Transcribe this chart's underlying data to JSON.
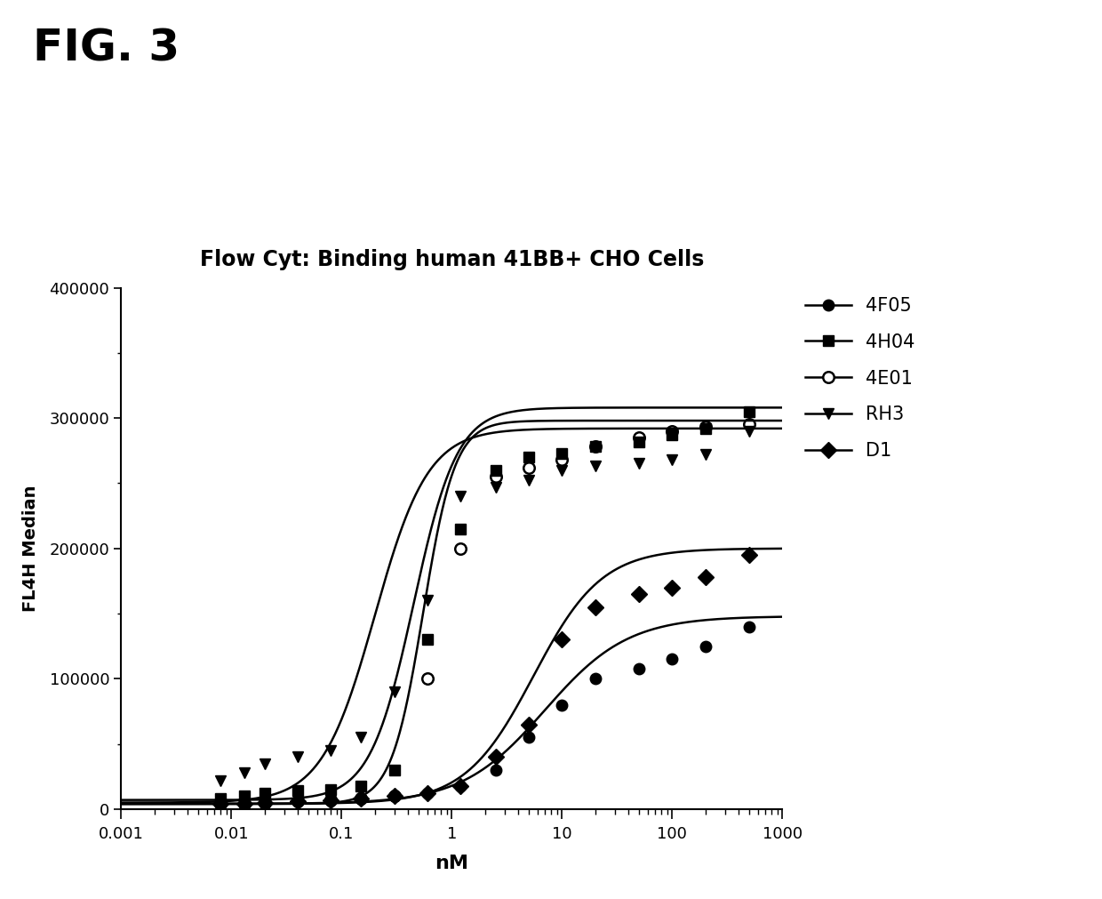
{
  "title": "Flow Cyt: Binding human 41BB+ CHO Cells",
  "fig_label": "FIG. 3",
  "xlabel": "nM",
  "ylabel": "FL4H Median",
  "xlim_log": [
    -3,
    3
  ],
  "ylim": [
    0,
    400000
  ],
  "yticks": [
    0,
    100000,
    200000,
    300000,
    400000
  ],
  "series": [
    {
      "label": "4F05",
      "marker": "o",
      "fillstyle": "full",
      "color": "#000000",
      "x": [
        0.008,
        0.013,
        0.02,
        0.04,
        0.08,
        0.15,
        0.3,
        0.6,
        1.2,
        2.5,
        5,
        10,
        20,
        50,
        100,
        200,
        500
      ],
      "y": [
        5000,
        5000,
        6000,
        7000,
        8000,
        9000,
        10000,
        12000,
        18000,
        30000,
        55000,
        80000,
        100000,
        108000,
        115000,
        125000,
        140000
      ],
      "ec50": 7.0,
      "bottom": 4000,
      "top": 148000,
      "hill": 1.15
    },
    {
      "label": "4H04",
      "marker": "s",
      "fillstyle": "full",
      "color": "#000000",
      "x": [
        0.008,
        0.013,
        0.02,
        0.04,
        0.08,
        0.15,
        0.3,
        0.6,
        1.2,
        2.5,
        5,
        10,
        20,
        50,
        100,
        200,
        500
      ],
      "y": [
        8000,
        10000,
        12000,
        14000,
        15000,
        18000,
        30000,
        130000,
        215000,
        260000,
        270000,
        273000,
        278000,
        282000,
        287000,
        292000,
        305000
      ],
      "ec50": 0.45,
      "bottom": 7000,
      "top": 308000,
      "hill": 2.2
    },
    {
      "label": "4E01",
      "marker": "o",
      "fillstyle": "none",
      "color": "#000000",
      "x": [
        0.008,
        0.013,
        0.02,
        0.04,
        0.08,
        0.15,
        0.3,
        0.6,
        1.2,
        2.5,
        5,
        10,
        20,
        50,
        100,
        200,
        500
      ],
      "y": [
        4000,
        4000,
        5000,
        6000,
        7000,
        8000,
        10000,
        100000,
        200000,
        255000,
        262000,
        268000,
        278000,
        285000,
        290000,
        293000,
        295000
      ],
      "ec50": 0.55,
      "bottom": 4000,
      "top": 298000,
      "hill": 3.0
    },
    {
      "label": "RH3",
      "marker": "v",
      "fillstyle": "full",
      "color": "#000000",
      "x": [
        0.008,
        0.013,
        0.02,
        0.04,
        0.08,
        0.15,
        0.3,
        0.6,
        1.2,
        2.5,
        5,
        10,
        20,
        50,
        100,
        200,
        500
      ],
      "y": [
        22000,
        28000,
        35000,
        40000,
        45000,
        55000,
        90000,
        160000,
        240000,
        247000,
        252000,
        260000,
        263000,
        265000,
        268000,
        272000,
        290000
      ],
      "ec50": 0.2,
      "bottom": 5000,
      "top": 292000,
      "hill": 1.8
    },
    {
      "label": "D1",
      "marker": "D",
      "fillstyle": "full",
      "color": "#000000",
      "x": [
        0.008,
        0.013,
        0.02,
        0.04,
        0.08,
        0.15,
        0.3,
        0.6,
        1.2,
        2.5,
        5,
        10,
        20,
        50,
        100,
        200,
        500
      ],
      "y": [
        4000,
        4000,
        5000,
        6000,
        7000,
        8000,
        10000,
        12000,
        18000,
        40000,
        65000,
        130000,
        155000,
        165000,
        170000,
        178000,
        195000
      ],
      "ec50": 5.5,
      "bottom": 4000,
      "top": 200000,
      "hill": 1.4
    }
  ],
  "background_color": "#ffffff",
  "line_width": 1.8,
  "marker_size": 9,
  "fig_label_fontsize": 36,
  "title_fontsize": 17,
  "axis_label_fontsize": 16,
  "tick_fontsize": 13,
  "legend_fontsize": 15
}
